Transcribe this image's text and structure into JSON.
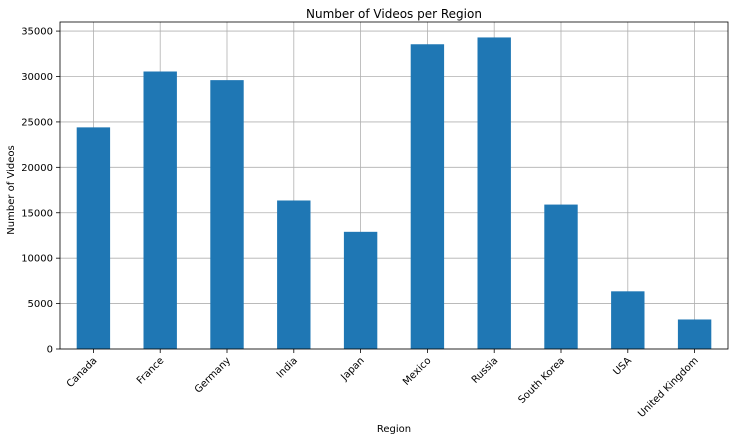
{
  "chart_data": {
    "type": "bar",
    "title": "Number of Videos per Region",
    "xlabel": "Region",
    "ylabel": "Number of Videos",
    "categories": [
      "Canada",
      "France",
      "Germany",
      "India",
      "Japan",
      "Mexico",
      "Russia",
      "South Korea",
      "USA",
      "United Kingdom"
    ],
    "values": [
      24400,
      30550,
      29600,
      16350,
      12900,
      33550,
      34300,
      15900,
      6350,
      3250
    ],
    "ylim": [
      0,
      36000
    ],
    "yticks": [
      0,
      5000,
      10000,
      15000,
      20000,
      25000,
      30000,
      35000
    ],
    "ytick_labels": [
      "0",
      "5000",
      "10000",
      "15000",
      "20000",
      "25000",
      "30000",
      "35000"
    ],
    "grid": true,
    "bar_color": "#1f77b4",
    "xtick_rotation": 45
  }
}
